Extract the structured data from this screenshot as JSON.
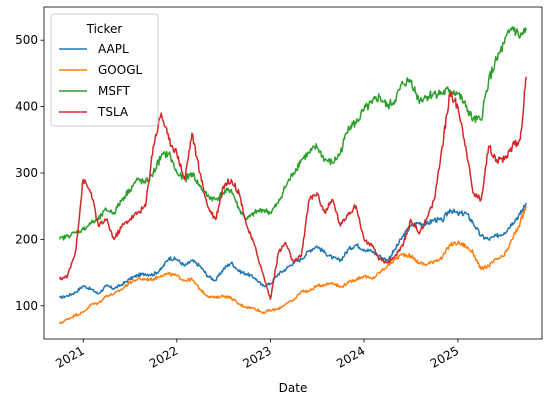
{
  "chart_data": {
    "type": "line",
    "xlabel": "Date",
    "ylabel": "",
    "legend": {
      "title": "Ticker",
      "placement": "top-left"
    },
    "x_ticks": [
      "2021",
      "2022",
      "2023",
      "2024",
      "2025"
    ],
    "x_tick_dates": [
      "2021-01-01",
      "2022-01-01",
      "2023-01-01",
      "2024-01-01",
      "2025-01-01"
    ],
    "xlim": [
      "2020-08-01",
      "2025-11-25"
    ],
    "y_ticks": [
      100,
      200,
      300,
      400,
      500
    ],
    "ylim": [
      50,
      550
    ],
    "grid": false,
    "series": [
      {
        "name": "AAPL",
        "color": "#1f77b4",
        "x": [
          "2020-10-01",
          "2020-11-01",
          "2020-12-01",
          "2021-01-01",
          "2021-02-01",
          "2021-03-01",
          "2021-04-01",
          "2021-05-01",
          "2021-06-01",
          "2021-07-01",
          "2021-08-01",
          "2021-09-01",
          "2021-10-01",
          "2021-11-01",
          "2021-12-01",
          "2022-01-01",
          "2022-02-01",
          "2022-03-01",
          "2022-04-01",
          "2022-05-01",
          "2022-06-01",
          "2022-07-01",
          "2022-08-01",
          "2022-09-01",
          "2022-10-01",
          "2022-11-01",
          "2022-12-01",
          "2023-01-01",
          "2023-02-01",
          "2023-03-01",
          "2023-04-01",
          "2023-05-01",
          "2023-06-01",
          "2023-07-01",
          "2023-08-01",
          "2023-09-01",
          "2023-10-01",
          "2023-11-01",
          "2023-12-01",
          "2024-01-01",
          "2024-02-01",
          "2024-03-01",
          "2024-04-01",
          "2024-05-01",
          "2024-06-01",
          "2024-07-01",
          "2024-08-01",
          "2024-09-01",
          "2024-10-01",
          "2024-11-01",
          "2024-12-01",
          "2025-01-01",
          "2025-02-01",
          "2025-03-01",
          "2025-04-01",
          "2025-05-01",
          "2025-06-01",
          "2025-07-01",
          "2025-08-01",
          "2025-09-01",
          "2025-09-25"
        ],
        "values": [
          112,
          115,
          120,
          130,
          125,
          118,
          130,
          126,
          132,
          140,
          146,
          148,
          147,
          155,
          172,
          170,
          160,
          168,
          160,
          145,
          138,
          155,
          165,
          152,
          148,
          142,
          130,
          133,
          148,
          155,
          165,
          170,
          183,
          190,
          180,
          172,
          168,
          185,
          192,
          185,
          182,
          175,
          168,
          185,
          205,
          220,
          225,
          223,
          230,
          228,
          245,
          238,
          240,
          225,
          205,
          200,
          205,
          210,
          225,
          238,
          255
        ]
      },
      {
        "name": "GOOGL",
        "color": "#ff7f0e",
        "x": [
          "2020-10-01",
          "2020-11-01",
          "2020-12-01",
          "2021-01-01",
          "2021-02-01",
          "2021-03-01",
          "2021-04-01",
          "2021-05-01",
          "2021-06-01",
          "2021-07-01",
          "2021-08-01",
          "2021-09-01",
          "2021-10-01",
          "2021-11-01",
          "2021-12-01",
          "2022-01-01",
          "2022-02-01",
          "2022-03-01",
          "2022-04-01",
          "2022-05-01",
          "2022-06-01",
          "2022-07-01",
          "2022-08-01",
          "2022-09-01",
          "2022-10-01",
          "2022-11-01",
          "2022-12-01",
          "2023-01-01",
          "2023-02-01",
          "2023-03-01",
          "2023-04-01",
          "2023-05-01",
          "2023-06-01",
          "2023-07-01",
          "2023-08-01",
          "2023-09-01",
          "2023-10-01",
          "2023-11-01",
          "2023-12-01",
          "2024-01-01",
          "2024-02-01",
          "2024-03-01",
          "2024-04-01",
          "2024-05-01",
          "2024-06-01",
          "2024-07-01",
          "2024-08-01",
          "2024-09-01",
          "2024-10-01",
          "2024-11-01",
          "2024-12-01",
          "2025-01-01",
          "2025-02-01",
          "2025-03-01",
          "2025-04-01",
          "2025-05-01",
          "2025-06-01",
          "2025-07-01",
          "2025-08-01",
          "2025-09-01",
          "2025-09-25"
        ],
        "values": [
          73,
          80,
          86,
          90,
          102,
          104,
          115,
          118,
          125,
          135,
          140,
          140,
          140,
          146,
          148,
          145,
          138,
          140,
          125,
          115,
          112,
          115,
          112,
          102,
          98,
          96,
          90,
          93,
          95,
          103,
          108,
          122,
          122,
          130,
          132,
          135,
          128,
          135,
          140,
          145,
          140,
          150,
          160,
          170,
          178,
          175,
          165,
          162,
          168,
          172,
          192,
          195,
          190,
          180,
          155,
          160,
          170,
          175,
          200,
          225,
          250
        ]
      },
      {
        "name": "MSFT",
        "color": "#2ca02c",
        "x": [
          "2020-10-01",
          "2020-11-01",
          "2020-12-01",
          "2021-01-01",
          "2021-02-01",
          "2021-03-01",
          "2021-04-01",
          "2021-05-01",
          "2021-06-01",
          "2021-07-01",
          "2021-08-01",
          "2021-09-01",
          "2021-10-01",
          "2021-11-01",
          "2021-12-01",
          "2022-01-01",
          "2022-02-01",
          "2022-03-01",
          "2022-04-01",
          "2022-05-01",
          "2022-06-01",
          "2022-07-01",
          "2022-08-01",
          "2022-09-01",
          "2022-10-01",
          "2022-11-01",
          "2022-12-01",
          "2023-01-01",
          "2023-02-01",
          "2023-03-01",
          "2023-04-01",
          "2023-05-01",
          "2023-06-01",
          "2023-07-01",
          "2023-08-01",
          "2023-09-01",
          "2023-10-01",
          "2023-11-01",
          "2023-12-01",
          "2024-01-01",
          "2024-02-01",
          "2024-03-01",
          "2024-04-01",
          "2024-05-01",
          "2024-06-01",
          "2024-07-01",
          "2024-08-01",
          "2024-09-01",
          "2024-10-01",
          "2024-11-01",
          "2024-12-01",
          "2025-01-01",
          "2025-02-01",
          "2025-03-01",
          "2025-04-01",
          "2025-05-01",
          "2025-06-01",
          "2025-07-01",
          "2025-08-01",
          "2025-09-01",
          "2025-09-25"
        ],
        "values": [
          200,
          205,
          210,
          215,
          225,
          230,
          245,
          240,
          260,
          275,
          290,
          285,
          300,
          325,
          330,
          300,
          290,
          300,
          280,
          265,
          260,
          270,
          275,
          245,
          230,
          240,
          245,
          240,
          255,
          280,
          300,
          320,
          330,
          340,
          320,
          315,
          330,
          370,
          375,
          395,
          405,
          415,
          400,
          410,
          435,
          440,
          410,
          415,
          420,
          420,
          425,
          420,
          400,
          380,
          380,
          440,
          470,
          495,
          520,
          505,
          515
        ]
      },
      {
        "name": "TSLA",
        "color": "#d62728",
        "x": [
          "2020-10-01",
          "2020-11-01",
          "2020-12-01",
          "2021-01-01",
          "2021-02-01",
          "2021-03-01",
          "2021-04-01",
          "2021-05-01",
          "2021-06-01",
          "2021-07-01",
          "2021-08-01",
          "2021-09-01",
          "2021-10-01",
          "2021-11-01",
          "2021-12-01",
          "2022-01-01",
          "2022-02-01",
          "2022-03-01",
          "2022-04-01",
          "2022-05-01",
          "2022-06-01",
          "2022-07-01",
          "2022-08-01",
          "2022-09-01",
          "2022-10-01",
          "2022-11-01",
          "2022-12-01",
          "2023-01-01",
          "2023-02-01",
          "2023-03-01",
          "2023-04-01",
          "2023-05-01",
          "2023-06-01",
          "2023-07-01",
          "2023-08-01",
          "2023-09-01",
          "2023-10-01",
          "2023-11-01",
          "2023-12-01",
          "2024-01-01",
          "2024-02-01",
          "2024-03-01",
          "2024-04-01",
          "2024-05-01",
          "2024-06-01",
          "2024-07-01",
          "2024-08-01",
          "2024-09-01",
          "2024-10-01",
          "2024-11-01",
          "2024-12-01",
          "2025-01-01",
          "2025-02-01",
          "2025-03-01",
          "2025-04-01",
          "2025-05-01",
          "2025-06-01",
          "2025-07-01",
          "2025-08-01",
          "2025-09-01",
          "2025-09-25"
        ],
        "values": [
          140,
          145,
          180,
          290,
          270,
          220,
          230,
          200,
          220,
          230,
          240,
          250,
          340,
          390,
          350,
          330,
          290,
          360,
          300,
          250,
          230,
          280,
          290,
          270,
          220,
          190,
          150,
          110,
          180,
          195,
          165,
          175,
          260,
          270,
          240,
          260,
          220,
          240,
          250,
          200,
          190,
          170,
          165,
          175,
          190,
          230,
          210,
          230,
          260,
          340,
          420,
          400,
          340,
          270,
          260,
          340,
          320,
          320,
          340,
          350,
          445
        ]
      }
    ]
  }
}
